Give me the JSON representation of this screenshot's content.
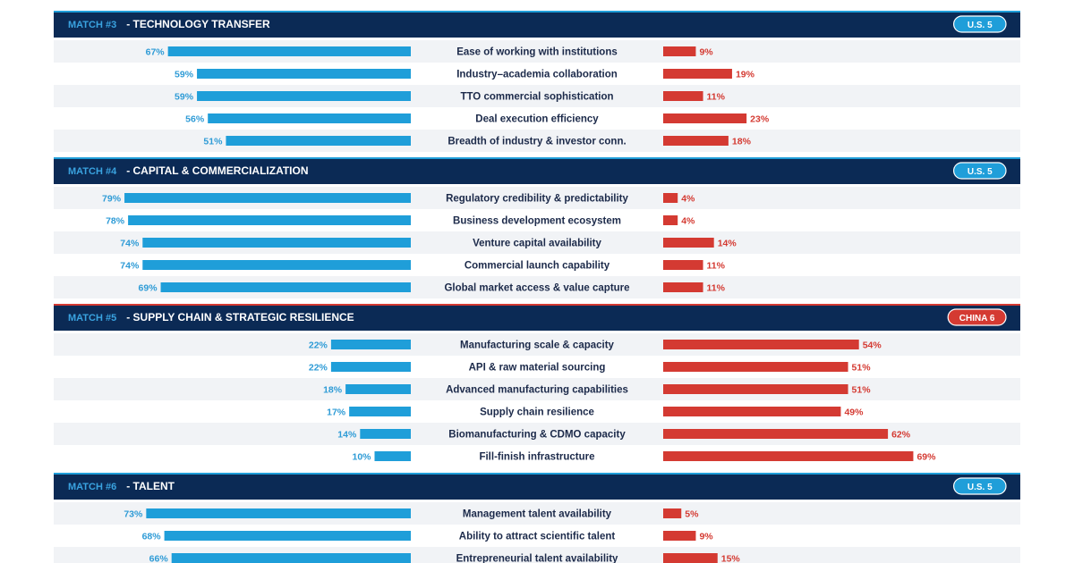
{
  "colors": {
    "us_bar": "#1f9ed9",
    "china_bar": "#d43a32",
    "header_bg": "#0b2a55",
    "row_stripe": "#f1f3f6",
    "us_badge": "#1f9ed9",
    "china_badge": "#d43a32"
  },
  "chart_data": {
    "type": "bar",
    "orientation": "diverging-horizontal",
    "value_format": "percent",
    "sections": [
      {
        "match": "MATCH #3",
        "title": "- TECHNOLOGY TRANSFER",
        "winner": "U.S. 5",
        "winner_side": "us",
        "rows": [
          {
            "label": "Ease of working with institutions",
            "us": 67,
            "china": 9
          },
          {
            "label": "Industry–academia collaboration",
            "us": 59,
            "china": 19
          },
          {
            "label": "TTO commercial sophistication",
            "us": 59,
            "china": 11
          },
          {
            "label": "Deal execution efficiency",
            "us": 56,
            "china": 23
          },
          {
            "label": "Breadth of industry & investor conn.",
            "us": 51,
            "china": 18
          }
        ]
      },
      {
        "match": "MATCH #4",
        "title": "- CAPITAL & COMMERCIALIZATION",
        "winner": "U.S. 5",
        "winner_side": "us",
        "rows": [
          {
            "label": "Regulatory credibility & predictability",
            "us": 79,
            "china": 4
          },
          {
            "label": "Business development ecosystem",
            "us": 78,
            "china": 4
          },
          {
            "label": "Venture capital availability",
            "us": 74,
            "china": 14
          },
          {
            "label": "Commercial launch capability",
            "us": 74,
            "china": 11
          },
          {
            "label": "Global market access & value capture",
            "us": 69,
            "china": 11
          }
        ]
      },
      {
        "match": "MATCH #5",
        "title": "- SUPPLY CHAIN & STRATEGIC RESILIENCE",
        "winner": "CHINA 6",
        "winner_side": "china",
        "rows": [
          {
            "label": "Manufacturing scale & capacity",
            "us": 22,
            "china": 54
          },
          {
            "label": "API & raw material sourcing",
            "us": 22,
            "china": 51
          },
          {
            "label": "Advanced manufacturing capabilities",
            "us": 18,
            "china": 51
          },
          {
            "label": "Supply chain resilience",
            "us": 17,
            "china": 49
          },
          {
            "label": "Biomanufacturing & CDMO capacity",
            "us": 14,
            "china": 62
          },
          {
            "label": "Fill-finish infrastructure",
            "us": 10,
            "china": 69
          }
        ]
      },
      {
        "match": "MATCH #6",
        "title": "- TALENT",
        "winner": "U.S. 5",
        "winner_side": "us",
        "rows": [
          {
            "label": "Management talent availability",
            "us": 73,
            "china": 5
          },
          {
            "label": "Ability to attract scientific talent",
            "us": 68,
            "china": 9
          },
          {
            "label": "Entrepreneurial talent availability",
            "us": 66,
            "china": 15
          }
        ]
      }
    ]
  }
}
